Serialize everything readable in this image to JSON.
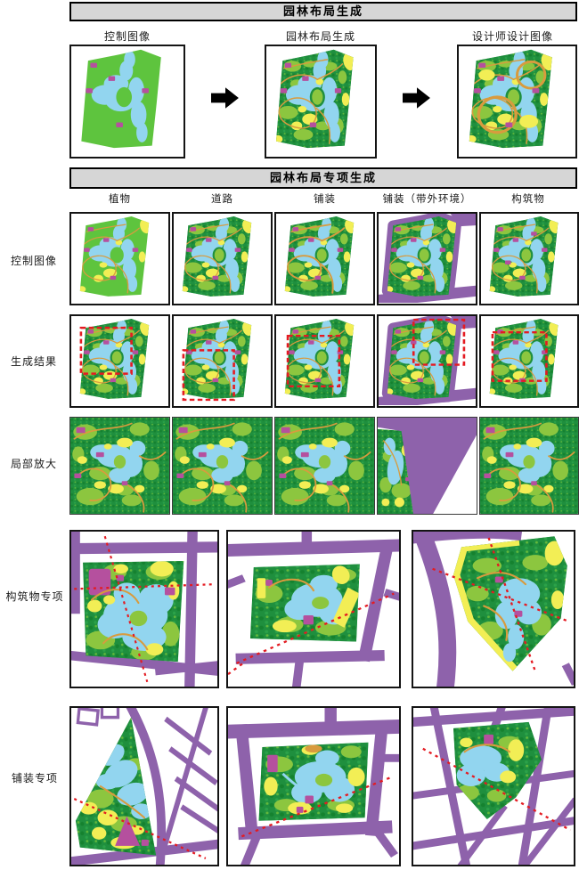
{
  "figure": {
    "section_generation": {
      "title": "园林布局生成",
      "labels": [
        "控制图像",
        "园林布局生成",
        "设计师设计图像"
      ]
    },
    "section_special": {
      "title": "园林布局专项生成",
      "columns": [
        "植物",
        "道路",
        "铺装",
        "铺装（带外环境）",
        "构筑物"
      ],
      "rows": [
        "控制图像",
        "生成结果",
        "局部放大"
      ]
    },
    "section_structures": {
      "row_label": "构筑物专项"
    },
    "section_paving": {
      "row_label": "铺装专项"
    }
  },
  "icons": {
    "flow_arrow": "right-arrow"
  },
  "colors": {
    "lawn_green": "#5ec43e",
    "canopy_dark_green": "#1f8f3e",
    "canopy_light_green": "#8cc63f",
    "water_blue": "#92d5ef",
    "paving_yellow": "#f2ee55",
    "path_orange": "#d89b3e",
    "road_purple": "#8e62ab",
    "structure_magenta": "#b5509e",
    "annotation_red": "#e41b22",
    "header_gray": "#d6d6d6"
  }
}
